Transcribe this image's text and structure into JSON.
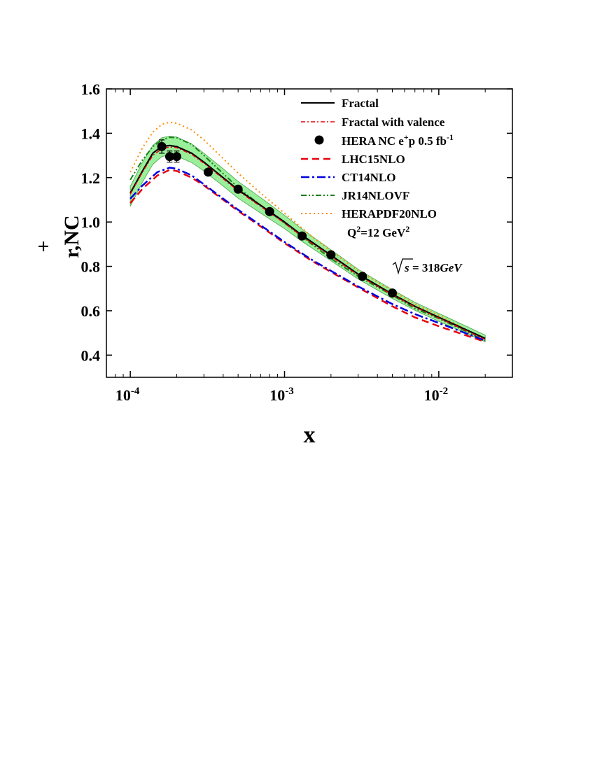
{
  "chart_data": {
    "type": "line",
    "xlabel": "x",
    "ylabel": "r,NC",
    "ylabel_sup": "+",
    "xscale": "log",
    "xlim": [
      7e-05,
      0.03
    ],
    "ylim": [
      0.3,
      1.6
    ],
    "yticks": [
      "0.4",
      "0.6",
      "0.8",
      "1.0",
      "1.2",
      "1.4",
      "1.6"
    ],
    "xticks": [
      {
        "base": "10",
        "exp": "-4"
      },
      {
        "base": "10",
        "exp": "-3"
      },
      {
        "base": "10",
        "exp": "-2"
      }
    ],
    "annotations": {
      "q2": {
        "prefix": "Q",
        "sup1": "2",
        "mid": "=12 GeV",
        "sup2": "2"
      },
      "sqrt_s": {
        "sym": "s",
        "rest": " = 318",
        "unit": "GeV"
      }
    },
    "legend_position": "top-right",
    "legend": [
      {
        "label": "Fractal"
      },
      {
        "label": "Fractal with valence"
      },
      {
        "label": "HERA NC e",
        "sup": "+",
        "mid": "p 0.5 fb",
        "sup2": "-1"
      },
      {
        "label": "LHC15NLO"
      },
      {
        "label": "CT14NLO"
      },
      {
        "label": "JR14NLOVF"
      },
      {
        "label": "HERAPDF20NLO"
      }
    ],
    "colors": {
      "fractal": "#000000",
      "fractal_valence": "#e8000b",
      "data": "#000000",
      "lhc": "#e8000b",
      "ct14": "#0000e0",
      "jr14": "#1a7f1a",
      "herapdf": "#ff8c00",
      "band": "#90ee90"
    },
    "series": [
      {
        "name": "Fractal",
        "key": "fractal",
        "x": [
          0.0001,
          0.00012,
          0.00014,
          0.00016,
          0.00018,
          0.0002,
          0.00025,
          0.0003,
          0.0004,
          0.0005,
          0.0007,
          0.001,
          0.0013,
          0.002,
          0.003,
          0.005,
          0.007,
          0.01,
          0.02
        ],
        "y": [
          1.13,
          1.23,
          1.31,
          1.34,
          1.345,
          1.34,
          1.31,
          1.27,
          1.2,
          1.145,
          1.075,
          1.0,
          0.94,
          0.85,
          0.765,
          0.675,
          0.62,
          0.57,
          0.475
        ]
      },
      {
        "name": "Fractal with valence",
        "key": "fractal_valence",
        "x": [
          0.0001,
          0.00012,
          0.00014,
          0.00016,
          0.00018,
          0.0002,
          0.00025,
          0.0003,
          0.0004,
          0.0005,
          0.0007,
          0.001,
          0.0013,
          0.002,
          0.003,
          0.005,
          0.007,
          0.01,
          0.02
        ],
        "y": [
          1.125,
          1.225,
          1.3,
          1.33,
          1.338,
          1.335,
          1.305,
          1.265,
          1.195,
          1.14,
          1.07,
          0.995,
          0.935,
          0.845,
          0.76,
          0.672,
          0.617,
          0.567,
          0.47
        ]
      },
      {
        "name": "LHC15NLO",
        "key": "lhc",
        "dash": "10,6",
        "x": [
          0.0001,
          0.00012,
          0.00015,
          0.00018,
          0.0002,
          0.00025,
          0.0003,
          0.0005,
          0.0007,
          0.001,
          0.0015,
          0.002,
          0.003,
          0.005,
          0.007,
          0.01,
          0.02
        ],
        "y": [
          1.085,
          1.15,
          1.21,
          1.235,
          1.23,
          1.2,
          1.165,
          1.05,
          0.98,
          0.905,
          0.825,
          0.775,
          0.705,
          0.62,
          0.57,
          0.53,
          0.46
        ]
      },
      {
        "name": "CT14NLO",
        "key": "ct14",
        "dash": "12,4,3,4",
        "x": [
          0.0001,
          0.00012,
          0.00015,
          0.00018,
          0.0002,
          0.00025,
          0.0003,
          0.0005,
          0.0007,
          0.001,
          0.0015,
          0.002,
          0.003,
          0.005,
          0.007,
          0.01,
          0.02
        ],
        "y": [
          1.105,
          1.165,
          1.225,
          1.245,
          1.24,
          1.21,
          1.17,
          1.055,
          0.985,
          0.91,
          0.83,
          0.78,
          0.71,
          0.63,
          0.585,
          0.545,
          0.465
        ]
      },
      {
        "name": "JR14NLOVF",
        "key": "jr14",
        "dash": "8,3,2,3,2,3",
        "x": [
          0.0001,
          0.00012,
          0.00014,
          0.00016,
          0.00018,
          0.0002,
          0.00025,
          0.0003,
          0.0005,
          0.0007,
          0.001,
          0.0015,
          0.002,
          0.003,
          0.005,
          0.007,
          0.01,
          0.02
        ],
        "y": [
          1.19,
          1.28,
          1.34,
          1.37,
          1.382,
          1.38,
          1.35,
          1.3,
          1.155,
          1.075,
          0.995,
          0.9,
          0.835,
          0.755,
          0.67,
          0.61,
          0.565,
          0.465
        ]
      },
      {
        "name": "HERAPDF20NLO",
        "key": "herapdf",
        "dash": "2,4",
        "x": [
          0.0001,
          0.00012,
          0.00014,
          0.00016,
          0.00018,
          0.0002,
          0.00025,
          0.0003,
          0.0005,
          0.0007,
          0.001,
          0.0015,
          0.002,
          0.003,
          0.005,
          0.007,
          0.01,
          0.02
        ],
        "y": [
          1.225,
          1.335,
          1.405,
          1.44,
          1.45,
          1.445,
          1.415,
          1.37,
          1.22,
          1.13,
          1.04,
          0.935,
          0.87,
          0.78,
          0.69,
          0.63,
          0.58,
          0.47
        ]
      }
    ],
    "band": {
      "x": [
        0.0001,
        0.00012,
        0.00014,
        0.00016,
        0.00018,
        0.0002,
        0.00025,
        0.0003,
        0.0004,
        0.0005,
        0.0007,
        0.001,
        0.0013,
        0.002,
        0.003,
        0.005,
        0.007,
        0.01,
        0.02
      ],
      "upper": [
        1.16,
        1.27,
        1.345,
        1.38,
        1.387,
        1.383,
        1.352,
        1.31,
        1.24,
        1.183,
        1.11,
        1.03,
        0.968,
        0.875,
        0.787,
        0.695,
        0.638,
        0.588,
        0.49
      ],
      "lower": [
        1.07,
        1.18,
        1.26,
        1.295,
        1.302,
        1.297,
        1.268,
        1.23,
        1.162,
        1.107,
        1.04,
        0.97,
        0.912,
        0.825,
        0.743,
        0.655,
        0.602,
        0.552,
        0.46
      ]
    },
    "data_points": {
      "name": "HERA NC e+p 0.5 fb-1",
      "x": [
        0.00016,
        0.00018,
        0.0002,
        0.00032,
        0.0005,
        0.0008,
        0.0013,
        0.002,
        0.0032,
        0.005
      ],
      "y": [
        1.34,
        1.295,
        1.295,
        1.225,
        1.148,
        1.047,
        0.937,
        0.852,
        0.755,
        0.68
      ],
      "err": [
        0.03,
        0.025,
        0.025,
        0.01,
        0.01,
        0.01,
        0.01,
        0.008,
        0.008,
        0.008
      ]
    }
  }
}
